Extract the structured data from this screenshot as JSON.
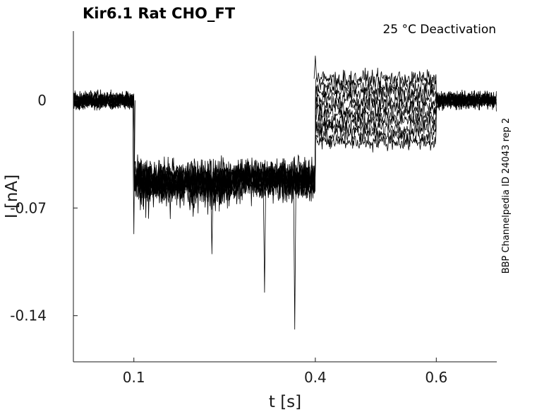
{
  "chart_data": {
    "type": "line",
    "title": "Kir6.1  Rat  CHO_FT",
    "annotation": "25 °C  Deactivation",
    "side_label": "BBP Channelpedia ID 24043 rep 2",
    "xlabel": "t [s]",
    "ylabel": "I [nA]",
    "xlim": [
      0.0,
      0.7
    ],
    "ylim": [
      -0.17,
      0.045
    ],
    "x_ticks": [
      0.1,
      0.4,
      0.6
    ],
    "x_tick_labels": [
      "0.1",
      "0.4",
      "0.6"
    ],
    "y_ticks": [
      0,
      -0.07,
      -0.14
    ],
    "y_tick_labels": [
      "0",
      "-0.07",
      "-0.14"
    ],
    "grid": false,
    "legend": "none",
    "color": "#000000",
    "segments": [
      {
        "t_start": 0.0,
        "t_end": 0.1,
        "mean": 0.0,
        "noise": 0.004
      },
      {
        "t_start": 0.1,
        "t_end": 0.4,
        "mean": -0.052,
        "noise": 0.008
      },
      {
        "t_start": 0.4,
        "t_end": 0.6,
        "mean_min": -0.027,
        "mean_max": 0.014,
        "noise": 0.004
      },
      {
        "t_start": 0.6,
        "t_end": 0.7,
        "mean": 0.0,
        "noise": 0.004
      }
    ],
    "sweep_count": 10,
    "events": [
      {
        "t": 0.1,
        "i": -0.087
      },
      {
        "t": 0.4,
        "i": 0.029
      },
      {
        "t": 0.316,
        "i": -0.125
      },
      {
        "t": 0.366,
        "i": -0.149
      },
      {
        "t": 0.229,
        "i": -0.1
      }
    ]
  }
}
